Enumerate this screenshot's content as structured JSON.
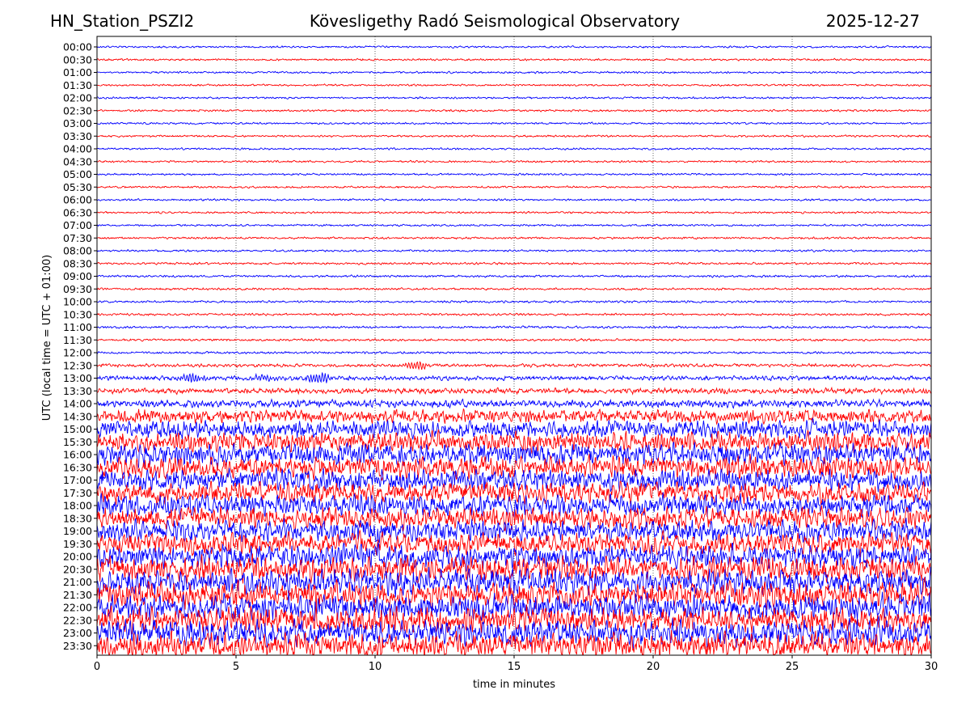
{
  "header": {
    "station": "HN_Station_PSZI2",
    "observatory": "Kövesligethy Radó Seismological Observatory",
    "date": "2025-12-27"
  },
  "chart_data": {
    "type": "line",
    "xlabel": "time in minutes",
    "ylabel": "UTC (local time = UTC + 01:00)",
    "xlim": [
      0,
      30
    ],
    "x_ticks": [
      0,
      5,
      10,
      15,
      20,
      25,
      30
    ],
    "x_tick_labels": [
      "0",
      "5",
      "10",
      "15",
      "20",
      "25",
      "30"
    ],
    "grid": "vertical dotted at 5-minute intervals",
    "series_colors": [
      "#0000ff",
      "#ff0000"
    ],
    "color_rule": "alternating by row: 00:00 blue, 00:30 red, ...",
    "rows": [
      "00:00",
      "00:30",
      "01:00",
      "01:30",
      "02:00",
      "02:30",
      "03:00",
      "03:30",
      "04:00",
      "04:30",
      "05:00",
      "05:30",
      "06:00",
      "06:30",
      "07:00",
      "07:30",
      "08:00",
      "08:30",
      "09:00",
      "09:30",
      "10:00",
      "10:30",
      "11:00",
      "11:30",
      "12:00",
      "12:30",
      "13:00",
      "13:30",
      "14:00",
      "14:30",
      "15:00",
      "15:30",
      "16:00",
      "16:30",
      "17:00",
      "17:30",
      "18:00",
      "18:30",
      "19:00",
      "19:30",
      "20:00",
      "20:30",
      "21:00",
      "21:30",
      "22:00",
      "22:30",
      "23:00",
      "23:30"
    ],
    "relative_amplitude": [
      0.18,
      0.18,
      0.18,
      0.18,
      0.18,
      0.18,
      0.18,
      0.18,
      0.18,
      0.18,
      0.18,
      0.18,
      0.18,
      0.18,
      0.18,
      0.18,
      0.18,
      0.2,
      0.2,
      0.2,
      0.2,
      0.2,
      0.2,
      0.2,
      0.2,
      0.3,
      0.4,
      0.5,
      0.7,
      1.2,
      1.6,
      1.8,
      2.0,
      2.0,
      2.0,
      2.0,
      2.0,
      2.0,
      2.0,
      2.0,
      2.2,
      2.4,
      2.4,
      2.4,
      2.4,
      2.4,
      2.4,
      2.4
    ],
    "events": [
      {
        "row": "12:30",
        "minute": 11.5,
        "amplitude": 0.7
      },
      {
        "row": "13:00",
        "minute": 3.4,
        "amplitude": 0.8
      },
      {
        "row": "13:00",
        "minute": 8.0,
        "amplitude": 0.9
      },
      {
        "row": "13:00",
        "minute": 6.0,
        "amplitude": 0.5
      }
    ]
  }
}
